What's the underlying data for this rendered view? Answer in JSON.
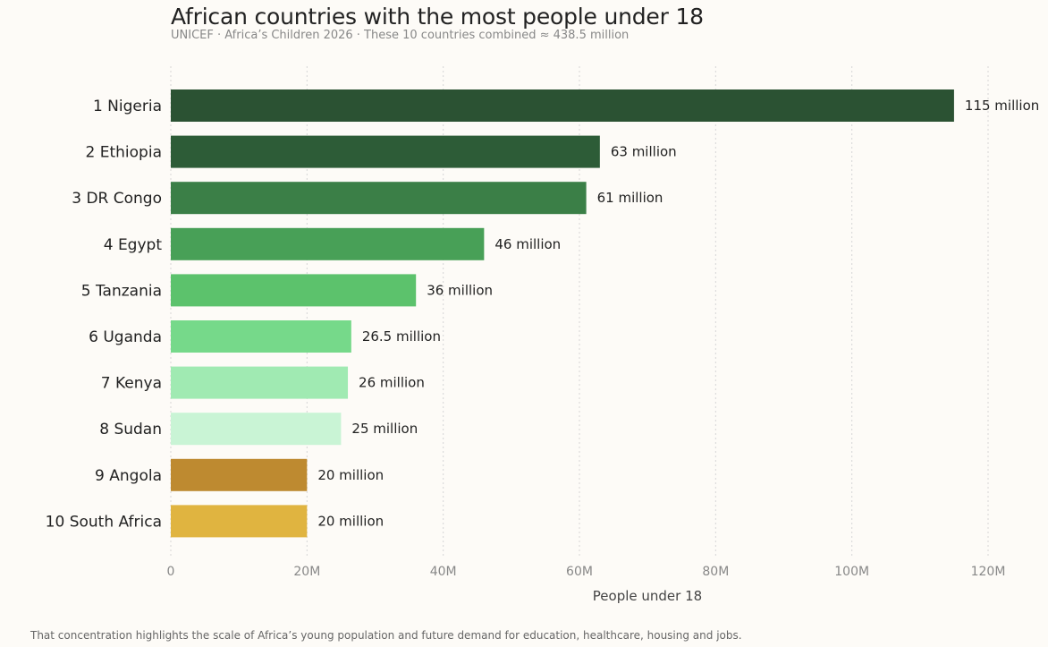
{
  "chart_data": {
    "type": "bar",
    "orientation": "horizontal",
    "title": "African countries with the most people under 18",
    "subtitle": "UNICEF  ·  Africa’s Children 2026  ·  These 10 countries combined ≈ 438.5 million",
    "xlabel": "People under 18",
    "ylabel": "",
    "xlim": [
      0,
      120
    ],
    "x_unit": "million",
    "x_ticks": [
      0,
      20,
      40,
      60,
      80,
      100,
      120
    ],
    "x_tick_labels": [
      "0",
      "20M",
      "40M",
      "60M",
      "80M",
      "100M",
      "120M"
    ],
    "grid": "vertical dotted",
    "legend": "none",
    "categories": [
      {
        "rank": "1",
        "name": "Nigeria"
      },
      {
        "rank": "2",
        "name": "Ethiopia"
      },
      {
        "rank": "3",
        "name": "DR Congo"
      },
      {
        "rank": "4",
        "name": "Egypt"
      },
      {
        "rank": "5",
        "name": "Tanzania"
      },
      {
        "rank": "6",
        "name": "Uganda"
      },
      {
        "rank": "7",
        "name": "Kenya"
      },
      {
        "rank": "8",
        "name": "Sudan"
      },
      {
        "rank": "9",
        "name": "Angola"
      },
      {
        "rank": "10",
        "name": "South Africa"
      }
    ],
    "values": [
      115,
      63,
      61,
      46,
      36,
      26.5,
      26,
      25,
      20,
      20
    ],
    "value_labels": [
      "115 million",
      "63 million",
      "61 million",
      "46 million",
      "36 million",
      "26.5 million",
      "26 million",
      "25 million",
      "20 million",
      "20 million"
    ],
    "colors": [
      "#2b5233",
      "#2d5c37",
      "#3b7f47",
      "#48a057",
      "#5cc26c",
      "#76d98a",
      "#a0eab2",
      "#c9f4d5",
      "#be8a30",
      "#e0b440"
    ]
  },
  "footnote": "That concentration highlights the scale of Africa’s young population and future demand for education, healthcare, housing and jobs."
}
